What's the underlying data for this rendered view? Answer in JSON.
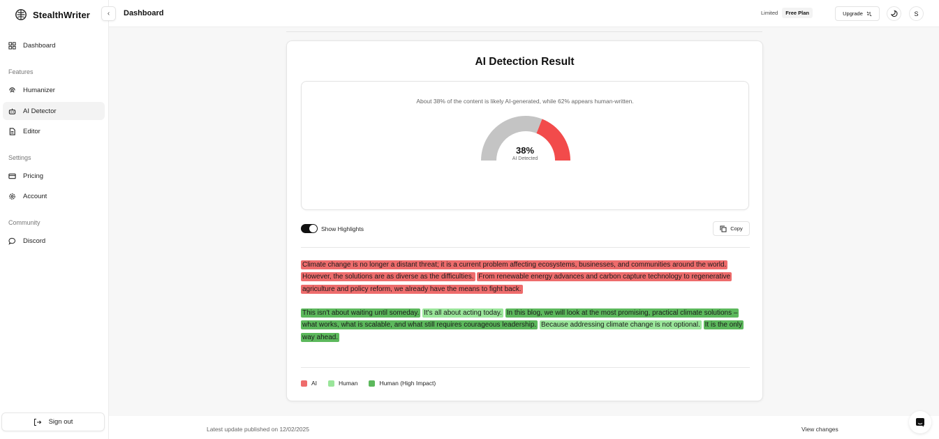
{
  "sidebar": {
    "brand": "StealthWriter",
    "items": [
      {
        "label": "Dashboard",
        "icon": "grid-icon"
      },
      {
        "section": "Features"
      },
      {
        "label": "Humanizer",
        "icon": "humanizer-icon"
      },
      {
        "label": "AI Detector",
        "icon": "robot-icon",
        "active": true
      },
      {
        "label": "Editor",
        "icon": "document-icon"
      },
      {
        "section": "Settings"
      },
      {
        "label": "Pricing",
        "icon": "card-icon"
      },
      {
        "label": "Account",
        "icon": "gear-icon"
      },
      {
        "section": "Community"
      },
      {
        "label": "Discord",
        "icon": "chat-bubble-icon"
      }
    ],
    "labels": {
      "dashboard": "Dashboard",
      "features": "Features",
      "humanizer": "Humanizer",
      "ai_detector": "AI Detector",
      "editor": "Editor",
      "settings": "Settings",
      "pricing": "Pricing",
      "account": "Account",
      "community": "Community",
      "discord": "Discord"
    },
    "signout": "Sign out"
  },
  "header": {
    "title": "Dashboard",
    "plan_prefix": "Limited",
    "plan_badge": "Free Plan",
    "upgrade": "Upgrade",
    "avatar_initial": "S",
    "collapse_glyph": "‹"
  },
  "result": {
    "title": "AI Detection Result",
    "summary": "About 38% of the content is likely AI-generated, while 62% appears human-written.",
    "ai_percent": 38,
    "human_percent": 62,
    "percent_label": "38%",
    "detected_label": "AI Detected",
    "colors": {
      "ai_arc": "#f24b4b",
      "human_arc": "#c4c4c4"
    },
    "show_highlights_label": "Show Highlights",
    "show_highlights_on": true,
    "copy_label": "Copy"
  },
  "paragraphs": [
    [
      {
        "type": "ai",
        "text": "Climate change is no longer a distant threat; it is a current problem affecting ecosystems, businesses, and communities around the world."
      },
      {
        "type": "ai",
        "text": "However, the solutions are as diverse as the difficulties."
      },
      {
        "type": "ai",
        "text": "From renewable energy advances and carbon capture technology to regenerative agriculture and policy reform, we already have the means to fight back."
      }
    ],
    [
      {
        "type": "high",
        "text": "This isn't about waiting until someday."
      },
      {
        "type": "human",
        "text": "It's all about acting today."
      },
      {
        "type": "high",
        "text": "In this blog, we will look at the most promising, practical climate solutions – what works, what is scalable, and what still requires courageous leadership."
      },
      {
        "type": "human",
        "text": "Because addressing climate change is not optional."
      },
      {
        "type": "high",
        "text": "It is the only way ahead."
      }
    ]
  ],
  "legend": [
    {
      "label": "AI",
      "color": "#ee6c6c"
    },
    {
      "label": "Human",
      "color": "#9ae59a"
    },
    {
      "label": "Human (High Impact)",
      "color": "#5cb85c"
    }
  ],
  "footer": {
    "update_text": "Latest update published on 12/02/2025",
    "view_changes": "View changes"
  }
}
